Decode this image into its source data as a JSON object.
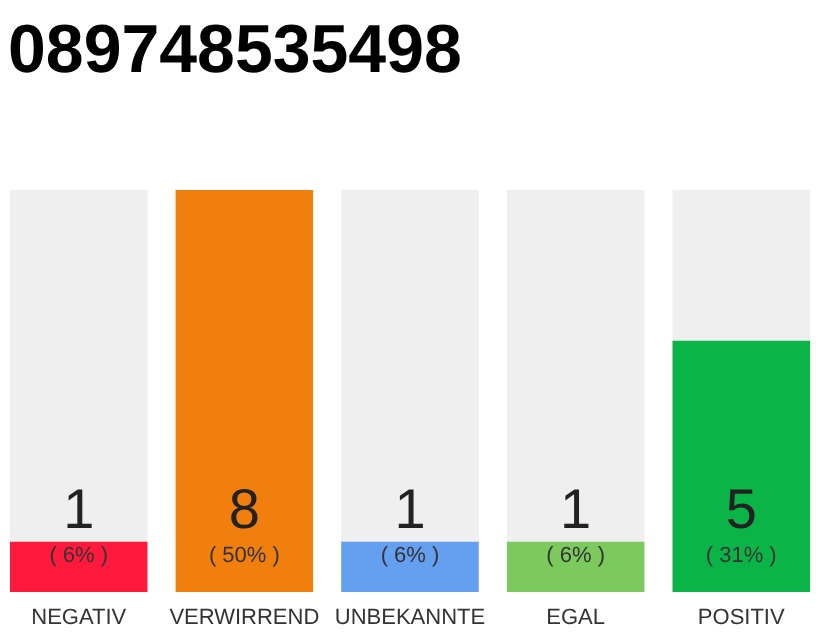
{
  "chart_data": {
    "type": "bar",
    "title": "089748535498",
    "categories": [
      "NEGATIV",
      "VERWIRREND",
      "UNBEKANNTE",
      "EGAL",
      "POSITIV"
    ],
    "values": [
      1,
      8,
      1,
      1,
      5
    ],
    "colors": [
      "#ff1a3d",
      "#f07f0e",
      "#659ff0",
      "#7cc95e",
      "#0bb447"
    ],
    "ylim": [
      0,
      8
    ],
    "data_labels": true,
    "annotations": [
      "( 6% )",
      "( 50% )",
      "( 6% )",
      "( 6% )",
      "( 31% )"
    ]
  }
}
